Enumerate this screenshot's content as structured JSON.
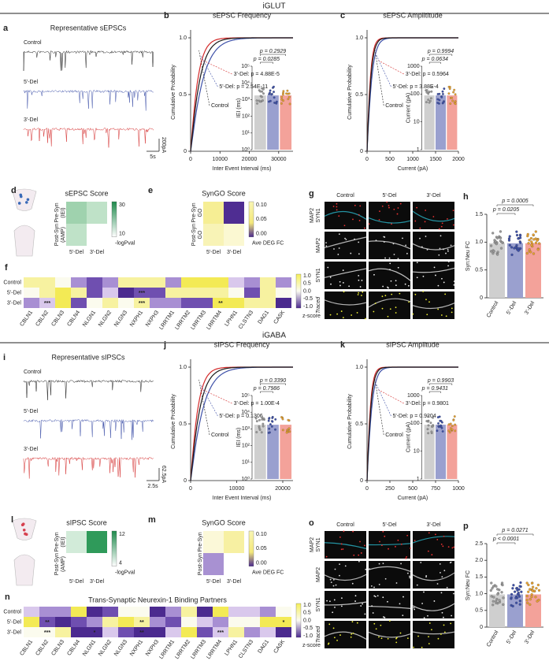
{
  "sections": [
    {
      "title": "iGLUT",
      "traces": {
        "label": "a",
        "title": "Representative sEPSCs",
        "groups": [
          "Control",
          "5'-Del",
          "3'-Del"
        ],
        "time_scale": "5s",
        "amp_scale": "200pA"
      },
      "freq": {
        "label": "b",
        "title": "sEPSC Frequency",
        "y_label": "Cumulative Probability",
        "x_label": "Inter Event Interval (ms)",
        "xticks": [
          "0",
          "10000",
          "20000",
          "30000"
        ],
        "yticks": [
          "0",
          "0.5",
          "1.0"
        ],
        "annotations": {
          "del3": "3'-Del: p = 4.88E-5",
          "del5": "5'-Del: p = 2.54E-11",
          "control": "Control"
        },
        "inset": {
          "y_label": "IEI (ms)",
          "yticks": [
            "10⁰",
            "10¹",
            "10²",
            "10³",
            "10⁴",
            "10⁵"
          ],
          "p_values": [
            "p = 0.2929",
            "p = 0.0285"
          ]
        }
      },
      "amp": {
        "label": "c",
        "title": "sEPSC Amplititude",
        "y_label": "Cumulative Probability",
        "x_label": "Current (pA)",
        "xticks": [
          "0",
          "500",
          "1000",
          "1500",
          "2000"
        ],
        "yticks": [
          "0",
          "0.5",
          "1.0"
        ],
        "annotations": {
          "del3": "3'-Del: p = 0.5964",
          "del5": "5'-Del: p = 3.88E-4",
          "control": "Control"
        },
        "inset": {
          "y_label": "Current (pA)",
          "yticks": [
            "1",
            "10",
            "100",
            "1000"
          ],
          "p_values": [
            "p = 0.9994",
            "p = 0.0634"
          ]
        }
      },
      "score": {
        "label": "d",
        "title": "sEPSC Score",
        "rows": [
          [
            "Pre-Syn",
            "(IEI)"
          ],
          [
            "Post-Syn",
            "(AMP)"
          ]
        ],
        "columns": [
          "5'-Del",
          "3'-Del"
        ],
        "colorbar_ticks": [
          "30",
          "10"
        ],
        "colorbar_label": "-logPval"
      },
      "syngo": {
        "label": "e",
        "title": "SynGO Score",
        "rows": [
          [
            "Pre-Syn",
            "GO"
          ],
          [
            "Post-Syn",
            "GO"
          ]
        ],
        "columns": [
          "5'-Del",
          "3'-Del"
        ],
        "colorbar_ticks": [
          "0.10",
          "0.05",
          "0.00"
        ],
        "colorbar_label": "Ave DEG FC"
      },
      "partners": {
        "label": "f",
        "rows": [
          "Control",
          "5'-Del",
          "3'-Del"
        ],
        "columns": [
          "CBLN1",
          "CBLN2",
          "CBLN3",
          "CBLN4",
          "NLGN1",
          "NLGN2",
          "NLGN3",
          "NXPH1",
          "NXPH3",
          "LRRTM1",
          "LRRTM2",
          "LRRTM3",
          "LRRTM4",
          "LPHN1",
          "CLSTN3",
          "DAG1",
          "CASK"
        ],
        "stars": [
          [
            null,
            null,
            null,
            null,
            null,
            null,
            null,
            null,
            null,
            null,
            null,
            null,
            null,
            null,
            null,
            null,
            null
          ],
          [
            null,
            null,
            null,
            null,
            null,
            null,
            null,
            "***",
            null,
            null,
            null,
            null,
            null,
            null,
            null,
            null,
            null
          ],
          [
            null,
            "***",
            null,
            null,
            null,
            null,
            null,
            "***",
            null,
            null,
            null,
            null,
            "**",
            null,
            null,
            null,
            null
          ]
        ],
        "colorbar_ticks": [
          "1.0",
          "0.5",
          "0.0",
          "-0.5",
          "-1.0"
        ],
        "colorbar_label": "z-score"
      },
      "images": {
        "label": "g",
        "columns": [
          "Control",
          "5'-Del",
          "3'-Del"
        ],
        "rows": [
          [
            "MAP2",
            "SYN1"
          ],
          [
            "MAP2"
          ],
          [
            "SYN1"
          ],
          [
            "Traced"
          ]
        ]
      },
      "bars": {
        "label": "h",
        "y_label": "Syn:Neu FC",
        "yticks": [
          "0",
          "0.5",
          "1.0",
          "1.5"
        ],
        "categories": [
          "Control",
          "5'-Del",
          "3'-Del"
        ],
        "p_values": [
          "p = 0.0005",
          "p = 0.0205"
        ]
      }
    },
    {
      "title": "iGABA",
      "traces": {
        "label": "i",
        "title": "Representative sIPSCs",
        "groups": [
          "Control",
          "5'-Del",
          "3'-Del"
        ],
        "time_scale": "2.5s",
        "amp_scale": "62.5pA"
      },
      "freq": {
        "label": "j",
        "title": "sIPSC Frequency",
        "y_label": "Cumulative Probability",
        "x_label": "Inter Event Interval (ms)",
        "xticks": [
          "0",
          "10000",
          "20000"
        ],
        "yticks": [
          "0",
          "0.5",
          "1.0"
        ],
        "annotations": {
          "del3": "3'-Del: p = 1.00E-4",
          "del5": "5'-Del: p = 0.1306",
          "control": "Control"
        },
        "inset": {
          "y_label": "IEI (ms)",
          "yticks": [
            "10⁰",
            "10¹",
            "10²",
            "10³",
            "10⁴",
            "10⁵"
          ],
          "p_values": [
            "p = 0.3390",
            "p = 0.7986"
          ]
        }
      },
      "amp": {
        "label": "k",
        "title": "sIPSC Amplitude",
        "y_label": "Cumulative Probability",
        "x_label": "Current (pA)",
        "xticks": [
          "0",
          "250",
          "500",
          "750",
          "1000"
        ],
        "yticks": [
          "0",
          "0.5",
          "1.0"
        ],
        "annotations": {
          "del3": "3'-Del: p = 0.9801",
          "del5": "5'-Del: p = 0.9204",
          "control": "Control"
        },
        "inset": {
          "y_label": "Current (pA)",
          "yticks": [
            "1",
            "10",
            "100",
            "1000"
          ],
          "p_values": [
            "p = 0.9903",
            "p = 0.9431"
          ]
        }
      },
      "score": {
        "label": "l",
        "title": "sIPSC Score",
        "rows": [
          [
            "Pre-Syn",
            "(IEI)"
          ],
          [
            "Post-Syn",
            "(AMP)"
          ]
        ],
        "columns": [
          "5'-Del",
          "3'-Del"
        ],
        "colorbar_ticks": [
          "12",
          "4"
        ],
        "colorbar_label": "-logPval"
      },
      "syngo": {
        "label": "m",
        "title": "SynGO Score",
        "rows": [
          [
            "Pre-Syn"
          ],
          [
            "Post-Syn"
          ]
        ],
        "columns": [
          "5'-Del",
          "3'-Del"
        ],
        "colorbar_ticks": [
          "0.10",
          "0.05",
          "0.00"
        ],
        "colorbar_label": "Ave DEG FC"
      },
      "partners": {
        "label": "n",
        "title": "Trans-Synaptic Neurexin-1 Binding Partners",
        "rows": [
          "Control",
          "5'-Del",
          "3'-Del"
        ],
        "columns": [
          "CBLN1",
          "CBLN2",
          "CBLN3",
          "CBLN4",
          "NLGN1",
          "NLGN2",
          "NLGN3",
          "NXPH1",
          "NXPH3",
          "LRRTM1",
          "LRRTM2",
          "LRRTM3",
          "LRRTM4",
          "LPHN1",
          "CLSTN3",
          "DAG1",
          "CASK"
        ],
        "stars": [
          [
            null,
            null,
            null,
            null,
            null,
            null,
            null,
            null,
            null,
            null,
            null,
            null,
            null,
            null,
            null,
            null,
            null
          ],
          [
            null,
            "**",
            null,
            null,
            null,
            null,
            null,
            "**",
            null,
            null,
            null,
            null,
            null,
            null,
            null,
            null,
            "*"
          ],
          [
            null,
            "***",
            null,
            null,
            "*",
            null,
            null,
            "**",
            null,
            null,
            null,
            null,
            "***",
            null,
            null,
            null,
            null
          ]
        ],
        "colorbar_ticks": [
          "1.0",
          "0.5",
          "0.0",
          "-0.5",
          "-1.0"
        ],
        "colorbar_label": "z-score"
      },
      "images": {
        "label": "o",
        "columns": [
          "Control",
          "5'-Del",
          "3'-Del"
        ],
        "rows": [
          [
            "MAP2",
            "SYN1"
          ],
          [
            "MAP2"
          ],
          [
            "SYN1"
          ],
          [
            "Traced"
          ]
        ]
      },
      "bars": {
        "label": "p",
        "y_label": "Syn:Neu FC",
        "yticks": [
          "0",
          "0.5",
          "1.0",
          "1.5",
          "2.0",
          "2.5"
        ],
        "categories": [
          "Control",
          "5'-Del",
          "3'-Del"
        ],
        "p_values": [
          "p = 0.0271",
          "p < 0.0001"
        ]
      }
    }
  ]
}
